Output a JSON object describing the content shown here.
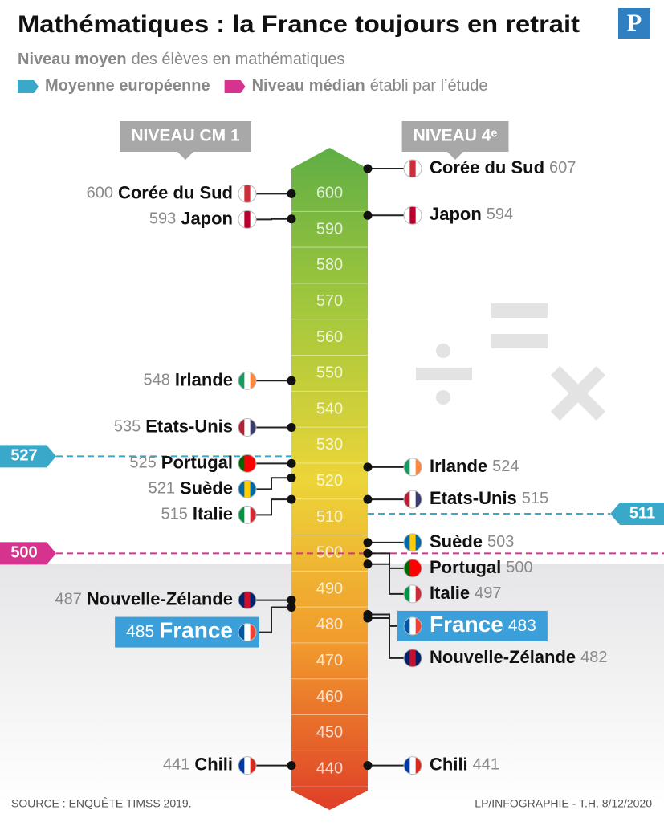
{
  "chart_data": {
    "type": "scale",
    "title": "Mathématiques : la France toujours en retrait",
    "logo": "P",
    "subtitle_bold": "Niveau moyen",
    "subtitle_rest": "des élèves en mathématiques",
    "legend": [
      {
        "name": "Moyenne européenne",
        "color": "#3aa8c8"
      },
      {
        "name": "Niveau médian",
        "rest": "établi par l’étude",
        "color": "#d6338f"
      }
    ],
    "ylim": [
      434,
      607
    ],
    "yticks": [
      440,
      450,
      460,
      470,
      480,
      490,
      500,
      510,
      520,
      530,
      540,
      550,
      560,
      570,
      580,
      590,
      600
    ],
    "highlight": "France",
    "highlight_color": "#3b9fd9",
    "series": [
      {
        "name": "NIVEAU CM 1",
        "side": "left",
        "categories": [
          "Corée du Sud",
          "Japon",
          "Irlande",
          "Etats-Unis",
          "Portugal",
          "Suède",
          "Italie",
          "Nouvelle-Zélande",
          "France",
          "Chili"
        ],
        "values": [
          600,
          593,
          548,
          535,
          525,
          521,
          515,
          487,
          485,
          441
        ],
        "flags": [
          [
            "#ffffff",
            "#cd2e3a",
            "#ffffff"
          ],
          [
            "#ffffff",
            "#bc002d",
            "#ffffff"
          ],
          [
            "#169b62",
            "#ffffff",
            "#ff883e"
          ],
          [
            "#b22234",
            "#ffffff",
            "#3c3b6e"
          ],
          [
            "#006600",
            "#ff0000",
            "#ff0000"
          ],
          [
            "#006aa7",
            "#fecc00",
            "#006aa7"
          ],
          [
            "#009246",
            "#ffffff",
            "#ce2b37"
          ],
          [
            "#012169",
            "#c8102e",
            "#012169"
          ],
          [
            "#0055a4",
            "#ffffff",
            "#ef4135"
          ],
          [
            "#0039a6",
            "#ffffff",
            "#d52b1e"
          ]
        ]
      },
      {
        "name": "NIVEAU 4ᵉ",
        "side": "right",
        "categories": [
          "Corée du Sud",
          "Japon",
          "Irlande",
          "Etats-Unis",
          "Suède",
          "Portugal",
          "Italie",
          "France",
          "Nouvelle-Zélande",
          "Chili"
        ],
        "values": [
          607,
          594,
          524,
          515,
          503,
          500,
          497,
          483,
          482,
          441
        ],
        "flags": [
          [
            "#ffffff",
            "#cd2e3a",
            "#ffffff"
          ],
          [
            "#ffffff",
            "#bc002d",
            "#ffffff"
          ],
          [
            "#169b62",
            "#ffffff",
            "#ff883e"
          ],
          [
            "#b22234",
            "#ffffff",
            "#3c3b6e"
          ],
          [
            "#006aa7",
            "#fecc00",
            "#006aa7"
          ],
          [
            "#006600",
            "#ff0000",
            "#ff0000"
          ],
          [
            "#009246",
            "#ffffff",
            "#ce2b37"
          ],
          [
            "#0055a4",
            "#ffffff",
            "#ef4135"
          ],
          [
            "#012169",
            "#c8102e",
            "#012169"
          ],
          [
            "#0039a6",
            "#ffffff",
            "#d52b1e"
          ]
        ]
      }
    ],
    "reference_lines": [
      {
        "value": 527,
        "color": "#3aa8c8",
        "side": "left",
        "extent": "half"
      },
      {
        "value": 511,
        "color": "#3aa8c8",
        "side": "right",
        "extent": "half"
      },
      {
        "value": 500,
        "color": "#d6338f",
        "side": "left",
        "extent": "full"
      }
    ],
    "source": "SOURCE : ENQUÊTE TIMSS 2019.",
    "credit": "LP/INFOGRAPHIE - T.H.  8/12/2020"
  }
}
